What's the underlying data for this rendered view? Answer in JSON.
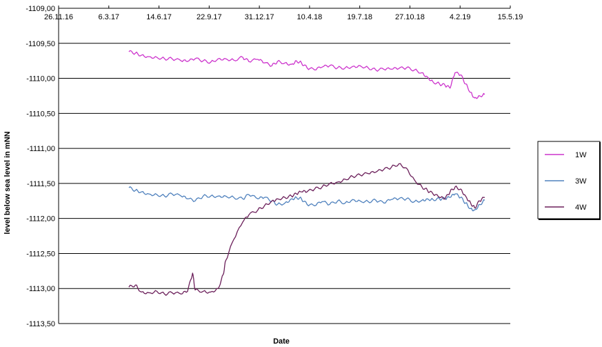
{
  "chart_data": {
    "type": "line",
    "title": "",
    "xlabel": "Date",
    "ylabel": "level below sea level in mNN",
    "x_axis_position": "top",
    "xlim": [
      "2016-11-26",
      "2019-05-15"
    ],
    "x_ticks": [
      "2016-11-26",
      "2017-03-06",
      "2017-06-14",
      "2017-09-22",
      "2017-12-31",
      "2018-04-10",
      "2018-07-19",
      "2018-10-27",
      "2019-02-04",
      "2019-05-15"
    ],
    "x_tick_labels": [
      "26.11.16",
      "6.3.17",
      "14.6.17",
      "22.9.17",
      "31.12.17",
      "10.4.18",
      "19.7.18",
      "27.10.18",
      "4.2.19",
      "15.5.19"
    ],
    "ylim": [
      -1113.5,
      -1109.0
    ],
    "y_ticks": [
      -1109.0,
      -1109.5,
      -1110.0,
      -1110.5,
      -1111.0,
      -1111.5,
      -1112.0,
      -1112.5,
      -1113.0,
      -1113.5
    ],
    "y_tick_labels": [
      "-1109,00",
      "-1109,50",
      "-1110,00",
      "-1110,50",
      "-1111,00",
      "-1111,50",
      "-1112,00",
      "-1112,50",
      "-1113,00",
      "-1113,50"
    ],
    "grid": "horizontal",
    "legend": "right",
    "series": [
      {
        "name": "1W",
        "color": "#cc33cc",
        "points": [
          [
            "2017-04-15",
            -1109.62
          ],
          [
            "2017-04-28",
            -1109.64
          ],
          [
            "2017-05-10",
            -1109.67
          ],
          [
            "2017-05-25",
            -1109.69
          ],
          [
            "2017-06-10",
            -1109.7
          ],
          [
            "2017-06-25",
            -1109.72
          ],
          [
            "2017-07-10",
            -1109.72
          ],
          [
            "2017-07-28",
            -1109.75
          ],
          [
            "2017-08-10",
            -1109.76
          ],
          [
            "2017-08-25",
            -1109.72
          ],
          [
            "2017-09-10",
            -1109.75
          ],
          [
            "2017-09-25",
            -1109.77
          ],
          [
            "2017-10-10",
            -1109.72
          ],
          [
            "2017-10-25",
            -1109.72
          ],
          [
            "2017-11-10",
            -1109.74
          ],
          [
            "2017-11-28",
            -1109.7
          ],
          [
            "2017-12-10",
            -1109.76
          ],
          [
            "2017-12-28",
            -1109.73
          ],
          [
            "2018-01-10",
            -1109.78
          ],
          [
            "2018-01-25",
            -1109.82
          ],
          [
            "2018-02-05",
            -1109.76
          ],
          [
            "2018-02-20",
            -1109.78
          ],
          [
            "2018-03-05",
            -1109.8
          ],
          [
            "2018-03-15",
            -1109.75
          ],
          [
            "2018-03-25",
            -1109.78
          ],
          [
            "2018-04-05",
            -1109.85
          ],
          [
            "2018-04-20",
            -1109.88
          ],
          [
            "2018-05-05",
            -1109.84
          ],
          [
            "2018-05-20",
            -1109.82
          ],
          [
            "2018-06-05",
            -1109.85
          ],
          [
            "2018-06-20",
            -1109.85
          ],
          [
            "2018-07-05",
            -1109.83
          ],
          [
            "2018-07-20",
            -1109.82
          ],
          [
            "2018-08-05",
            -1109.85
          ],
          [
            "2018-08-20",
            -1109.88
          ],
          [
            "2018-09-05",
            -1109.87
          ],
          [
            "2018-09-20",
            -1109.87
          ],
          [
            "2018-10-05",
            -1109.86
          ],
          [
            "2018-10-20",
            -1109.85
          ],
          [
            "2018-11-05",
            -1109.88
          ],
          [
            "2018-11-20",
            -1109.92
          ],
          [
            "2018-12-01",
            -1109.98
          ],
          [
            "2018-12-12",
            -1110.05
          ],
          [
            "2018-12-25",
            -1110.08
          ],
          [
            "2019-01-05",
            -1110.1
          ],
          [
            "2019-01-15",
            -1110.14
          ],
          [
            "2019-01-25",
            -1109.92
          ],
          [
            "2019-02-05",
            -1109.95
          ],
          [
            "2019-02-15",
            -1110.08
          ],
          [
            "2019-02-25",
            -1110.2
          ],
          [
            "2019-03-05",
            -1110.28
          ],
          [
            "2019-03-15",
            -1110.25
          ],
          [
            "2019-03-25",
            -1110.23
          ]
        ]
      },
      {
        "name": "3W",
        "color": "#4f81bd",
        "points": [
          [
            "2017-04-15",
            -1111.56
          ],
          [
            "2017-04-28",
            -1111.6
          ],
          [
            "2017-05-10",
            -1111.62
          ],
          [
            "2017-05-25",
            -1111.65
          ],
          [
            "2017-06-10",
            -1111.66
          ],
          [
            "2017-06-25",
            -1111.68
          ],
          [
            "2017-07-10",
            -1111.65
          ],
          [
            "2017-07-28",
            -1111.68
          ],
          [
            "2017-08-10",
            -1111.72
          ],
          [
            "2017-08-25",
            -1111.75
          ],
          [
            "2017-09-10",
            -1111.68
          ],
          [
            "2017-09-25",
            -1111.68
          ],
          [
            "2017-10-10",
            -1111.68
          ],
          [
            "2017-10-25",
            -1111.68
          ],
          [
            "2017-11-10",
            -1111.7
          ],
          [
            "2017-11-28",
            -1111.72
          ],
          [
            "2017-12-10",
            -1111.66
          ],
          [
            "2017-12-28",
            -1111.72
          ],
          [
            "2018-01-10",
            -1111.7
          ],
          [
            "2018-01-25",
            -1111.75
          ],
          [
            "2018-02-05",
            -1111.8
          ],
          [
            "2018-02-20",
            -1111.78
          ],
          [
            "2018-03-05",
            -1111.72
          ],
          [
            "2018-03-15",
            -1111.7
          ],
          [
            "2018-03-25",
            -1111.72
          ],
          [
            "2018-04-05",
            -1111.8
          ],
          [
            "2018-04-20",
            -1111.82
          ],
          [
            "2018-05-05",
            -1111.76
          ],
          [
            "2018-05-20",
            -1111.8
          ],
          [
            "2018-06-05",
            -1111.75
          ],
          [
            "2018-06-20",
            -1111.78
          ],
          [
            "2018-07-05",
            -1111.73
          ],
          [
            "2018-07-20",
            -1111.75
          ],
          [
            "2018-08-05",
            -1111.76
          ],
          [
            "2018-08-20",
            -1111.74
          ],
          [
            "2018-09-05",
            -1111.78
          ],
          [
            "2018-09-20",
            -1111.73
          ],
          [
            "2018-10-05",
            -1111.72
          ],
          [
            "2018-10-20",
            -1111.72
          ],
          [
            "2018-11-05",
            -1111.76
          ],
          [
            "2018-11-20",
            -1111.74
          ],
          [
            "2018-12-01",
            -1111.72
          ],
          [
            "2018-12-12",
            -1111.73
          ],
          [
            "2018-12-25",
            -1111.72
          ],
          [
            "2019-01-05",
            -1111.72
          ],
          [
            "2019-01-15",
            -1111.7
          ],
          [
            "2019-01-25",
            -1111.65
          ],
          [
            "2019-02-05",
            -1111.7
          ],
          [
            "2019-02-15",
            -1111.78
          ],
          [
            "2019-02-25",
            -1111.86
          ],
          [
            "2019-03-05",
            -1111.88
          ],
          [
            "2019-03-15",
            -1111.8
          ],
          [
            "2019-03-25",
            -1111.74
          ]
        ]
      },
      {
        "name": "4W",
        "color": "#6b1f5a",
        "points": [
          [
            "2017-04-15",
            -1112.98
          ],
          [
            "2017-04-28",
            -1112.95
          ],
          [
            "2017-05-10",
            -1113.05
          ],
          [
            "2017-05-25",
            -1113.06
          ],
          [
            "2017-06-10",
            -1113.04
          ],
          [
            "2017-06-25",
            -1113.08
          ],
          [
            "2017-07-10",
            -1113.06
          ],
          [
            "2017-07-28",
            -1113.08
          ],
          [
            "2017-08-10",
            -1113.04
          ],
          [
            "2017-08-20",
            -1112.78
          ],
          [
            "2017-08-25",
            -1113.02
          ],
          [
            "2017-09-10",
            -1113.04
          ],
          [
            "2017-09-25",
            -1113.05
          ],
          [
            "2017-10-10",
            -1113.0
          ],
          [
            "2017-10-20",
            -1112.8
          ],
          [
            "2017-10-25",
            -1112.6
          ],
          [
            "2017-11-10",
            -1112.3
          ],
          [
            "2017-11-28",
            -1112.05
          ],
          [
            "2017-12-10",
            -1111.95
          ],
          [
            "2017-12-28",
            -1111.88
          ],
          [
            "2018-01-10",
            -1111.82
          ],
          [
            "2018-01-25",
            -1111.75
          ],
          [
            "2018-02-05",
            -1111.72
          ],
          [
            "2018-02-20",
            -1111.7
          ],
          [
            "2018-03-05",
            -1111.68
          ],
          [
            "2018-03-15",
            -1111.65
          ],
          [
            "2018-03-25",
            -1111.62
          ],
          [
            "2018-04-05",
            -1111.62
          ],
          [
            "2018-04-20",
            -1111.58
          ],
          [
            "2018-05-05",
            -1111.55
          ],
          [
            "2018-05-20",
            -1111.5
          ],
          [
            "2018-06-05",
            -1111.48
          ],
          [
            "2018-06-20",
            -1111.44
          ],
          [
            "2018-07-05",
            -1111.4
          ],
          [
            "2018-07-20",
            -1111.38
          ],
          [
            "2018-08-05",
            -1111.36
          ],
          [
            "2018-08-20",
            -1111.34
          ],
          [
            "2018-09-05",
            -1111.3
          ],
          [
            "2018-09-20",
            -1111.27
          ],
          [
            "2018-10-05",
            -1111.22
          ],
          [
            "2018-10-20",
            -1111.28
          ],
          [
            "2018-11-05",
            -1111.45
          ],
          [
            "2018-11-20",
            -1111.55
          ],
          [
            "2018-12-01",
            -1111.6
          ],
          [
            "2018-12-12",
            -1111.65
          ],
          [
            "2018-12-25",
            -1111.7
          ],
          [
            "2019-01-05",
            -1111.72
          ],
          [
            "2019-01-15",
            -1111.62
          ],
          [
            "2019-01-25",
            -1111.55
          ],
          [
            "2019-02-05",
            -1111.58
          ],
          [
            "2019-02-15",
            -1111.68
          ],
          [
            "2019-02-25",
            -1111.78
          ],
          [
            "2019-03-05",
            -1111.85
          ],
          [
            "2019-03-15",
            -1111.75
          ],
          [
            "2019-03-25",
            -1111.7
          ]
        ]
      }
    ]
  }
}
